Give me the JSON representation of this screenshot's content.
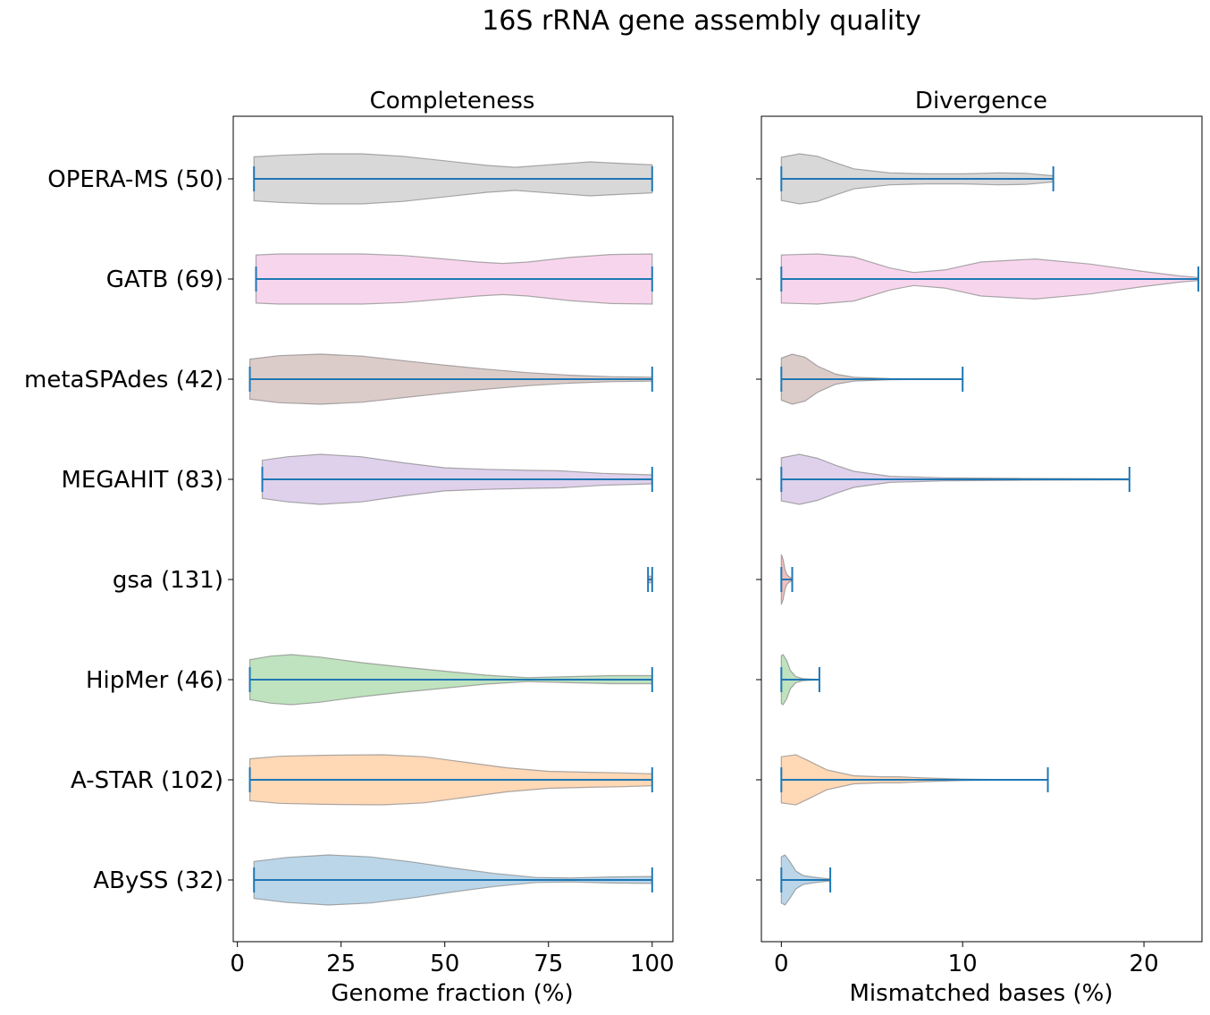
{
  "figure_title": "16S rRNA gene assembly quality",
  "chart_data": [
    {
      "type": "violin",
      "title": "Completeness",
      "xlabel": "Genome fraction (%)",
      "ylabel": "",
      "xlim": [
        -1,
        105
      ],
      "xticks": [
        0,
        25,
        50,
        75,
        100
      ],
      "grid": false,
      "categories": [
        "OPERA-MS (50)",
        "GATB (69)",
        "metaSPAdes (42)",
        "MEGAHIT (83)",
        "gsa (131)",
        "HipMer (46)",
        "A-STAR (102)",
        "ABySS (32)"
      ],
      "series": [
        {
          "category": "OPERA-MS (50)",
          "color": "#7f7f7f",
          "min": 4,
          "max": 100,
          "density": [
            [
              4,
              0.44
            ],
            [
              10,
              0.47
            ],
            [
              20,
              0.5
            ],
            [
              30,
              0.5
            ],
            [
              40,
              0.45
            ],
            [
              50,
              0.36
            ],
            [
              60,
              0.27
            ],
            [
              67,
              0.23
            ],
            [
              75,
              0.28
            ],
            [
              85,
              0.34
            ],
            [
              92,
              0.31
            ],
            [
              100,
              0.28
            ]
          ]
        },
        {
          "category": "GATB (69)",
          "color": "#e377c2",
          "min": 4.5,
          "max": 100,
          "density": [
            [
              4.5,
              0.48
            ],
            [
              10,
              0.5
            ],
            [
              20,
              0.5
            ],
            [
              30,
              0.5
            ],
            [
              40,
              0.47
            ],
            [
              50,
              0.4
            ],
            [
              58,
              0.34
            ],
            [
              64,
              0.31
            ],
            [
              70,
              0.34
            ],
            [
              80,
              0.43
            ],
            [
              90,
              0.49
            ],
            [
              100,
              0.5
            ]
          ]
        },
        {
          "category": "metaSPAdes (42)",
          "color": "#8c564b",
          "min": 3,
          "max": 100,
          "density": [
            [
              3,
              0.4
            ],
            [
              10,
              0.47
            ],
            [
              20,
              0.5
            ],
            [
              30,
              0.46
            ],
            [
              40,
              0.37
            ],
            [
              50,
              0.28
            ],
            [
              60,
              0.2
            ],
            [
              70,
              0.13
            ],
            [
              80,
              0.08
            ],
            [
              90,
              0.05
            ],
            [
              100,
              0.04
            ]
          ]
        },
        {
          "category": "MEGAHIT (83)",
          "color": "#9467bd",
          "min": 6,
          "max": 100,
          "density": [
            [
              6,
              0.38
            ],
            [
              12,
              0.45
            ],
            [
              20,
              0.5
            ],
            [
              30,
              0.45
            ],
            [
              40,
              0.33
            ],
            [
              50,
              0.23
            ],
            [
              60,
              0.2
            ],
            [
              70,
              0.18
            ],
            [
              78,
              0.17
            ],
            [
              88,
              0.12
            ],
            [
              100,
              0.09
            ]
          ]
        },
        {
          "category": "gsa (131)",
          "color": "#d62728",
          "min": 99,
          "max": 100,
          "density": [
            [
              99,
              0.05
            ],
            [
              99.5,
              0.07
            ],
            [
              100,
              0.03
            ]
          ]
        },
        {
          "category": "HipMer (46)",
          "color": "#2ca02c",
          "min": 3,
          "max": 100,
          "density": [
            [
              3,
              0.4
            ],
            [
              8,
              0.47
            ],
            [
              13,
              0.5
            ],
            [
              20,
              0.45
            ],
            [
              30,
              0.34
            ],
            [
              40,
              0.25
            ],
            [
              50,
              0.17
            ],
            [
              60,
              0.09
            ],
            [
              70,
              0.04
            ],
            [
              80,
              0.06
            ],
            [
              90,
              0.08
            ],
            [
              100,
              0.08
            ]
          ]
        },
        {
          "category": "A-STAR (102)",
          "color": "#ff7f0e",
          "min": 3,
          "max": 100,
          "density": [
            [
              3,
              0.42
            ],
            [
              10,
              0.47
            ],
            [
              20,
              0.49
            ],
            [
              35,
              0.5
            ],
            [
              45,
              0.46
            ],
            [
              55,
              0.35
            ],
            [
              65,
              0.24
            ],
            [
              75,
              0.17
            ],
            [
              85,
              0.15
            ],
            [
              92,
              0.14
            ],
            [
              100,
              0.12
            ]
          ]
        },
        {
          "category": "ABySS (32)",
          "color": "#1f77b4",
          "min": 4,
          "max": 100,
          "density": [
            [
              4,
              0.37
            ],
            [
              12,
              0.45
            ],
            [
              22,
              0.5
            ],
            [
              32,
              0.46
            ],
            [
              42,
              0.36
            ],
            [
              52,
              0.24
            ],
            [
              62,
              0.13
            ],
            [
              72,
              0.05
            ],
            [
              80,
              0.04
            ],
            [
              90,
              0.06
            ],
            [
              100,
              0.07
            ]
          ]
        }
      ]
    },
    {
      "type": "violin",
      "title": "Divergence",
      "xlabel": "Mismatched bases (%)",
      "ylabel": "",
      "xlim": [
        -1.1,
        23.2
      ],
      "xticks": [
        0,
        10,
        20
      ],
      "grid": false,
      "categories": [
        "OPERA-MS (50)",
        "GATB (69)",
        "metaSPAdes (42)",
        "MEGAHIT (83)",
        "gsa (131)",
        "HipMer (46)",
        "A-STAR (102)",
        "ABySS (32)"
      ],
      "series": [
        {
          "category": "OPERA-MS (50)",
          "color": "#7f7f7f",
          "min": 0,
          "max": 15,
          "density": [
            [
              0,
              0.43
            ],
            [
              1,
              0.5
            ],
            [
              2,
              0.45
            ],
            [
              3,
              0.32
            ],
            [
              4,
              0.2
            ],
            [
              6,
              0.12
            ],
            [
              8,
              0.1
            ],
            [
              10,
              0.1
            ],
            [
              12,
              0.12
            ],
            [
              13.5,
              0.11
            ],
            [
              15,
              0.06
            ]
          ]
        },
        {
          "category": "GATB (69)",
          "color": "#e377c2",
          "min": 0,
          "max": 23,
          "density": [
            [
              0,
              0.48
            ],
            [
              2,
              0.5
            ],
            [
              4,
              0.44
            ],
            [
              6,
              0.22
            ],
            [
              7.3,
              0.13
            ],
            [
              9,
              0.18
            ],
            [
              11,
              0.34
            ],
            [
              14,
              0.4
            ],
            [
              17,
              0.3
            ],
            [
              20,
              0.15
            ],
            [
              22,
              0.06
            ],
            [
              23,
              0.03
            ]
          ]
        },
        {
          "category": "metaSPAdes (42)",
          "color": "#8c564b",
          "min": 0,
          "max": 10,
          "density": [
            [
              0,
              0.42
            ],
            [
              0.6,
              0.5
            ],
            [
              1.3,
              0.44
            ],
            [
              2,
              0.26
            ],
            [
              3,
              0.1
            ],
            [
              4,
              0.04
            ],
            [
              6,
              0.01
            ],
            [
              8,
              0.005
            ],
            [
              10,
              0.003
            ]
          ]
        },
        {
          "category": "MEGAHIT (83)",
          "color": "#9467bd",
          "min": 0,
          "max": 19.2,
          "density": [
            [
              0,
              0.43
            ],
            [
              1,
              0.5
            ],
            [
              2,
              0.42
            ],
            [
              3,
              0.28
            ],
            [
              4,
              0.16
            ],
            [
              6,
              0.06
            ],
            [
              9,
              0.03
            ],
            [
              13,
              0.02
            ],
            [
              17,
              0.015
            ],
            [
              19.2,
              0.01
            ]
          ]
        },
        {
          "category": "gsa (131)",
          "color": "#d62728",
          "min": 0,
          "max": 0.6,
          "density": [
            [
              0,
              0.5
            ],
            [
              0.1,
              0.4
            ],
            [
              0.2,
              0.2
            ],
            [
              0.3,
              0.1
            ],
            [
              0.45,
              0.05
            ],
            [
              0.6,
              0.02
            ]
          ]
        },
        {
          "category": "HipMer (46)",
          "color": "#2ca02c",
          "min": 0,
          "max": 2.1,
          "density": [
            [
              0,
              0.48
            ],
            [
              0.1,
              0.5
            ],
            [
              0.3,
              0.38
            ],
            [
              0.5,
              0.18
            ],
            [
              0.8,
              0.06
            ],
            [
              1.2,
              0.02
            ],
            [
              1.6,
              0.01
            ],
            [
              2.1,
              0.005
            ]
          ]
        },
        {
          "category": "A-STAR (102)",
          "color": "#ff7f0e",
          "min": 0,
          "max": 14.7,
          "density": [
            [
              0,
              0.46
            ],
            [
              0.8,
              0.5
            ],
            [
              1.5,
              0.38
            ],
            [
              2.5,
              0.2
            ],
            [
              4,
              0.08
            ],
            [
              5.5,
              0.06
            ],
            [
              6.5,
              0.06
            ],
            [
              8,
              0.035
            ],
            [
              10,
              0.015
            ],
            [
              12,
              0.006
            ],
            [
              14.7,
              0.003
            ]
          ]
        },
        {
          "category": "ABySS (32)",
          "color": "#1f77b4",
          "min": 0,
          "max": 2.7,
          "density": [
            [
              0,
              0.46
            ],
            [
              0.2,
              0.5
            ],
            [
              0.5,
              0.35
            ],
            [
              0.8,
              0.18
            ],
            [
              1.2,
              0.09
            ],
            [
              1.7,
              0.06
            ],
            [
              2.2,
              0.04
            ],
            [
              2.7,
              0.02
            ]
          ]
        }
      ]
    }
  ]
}
